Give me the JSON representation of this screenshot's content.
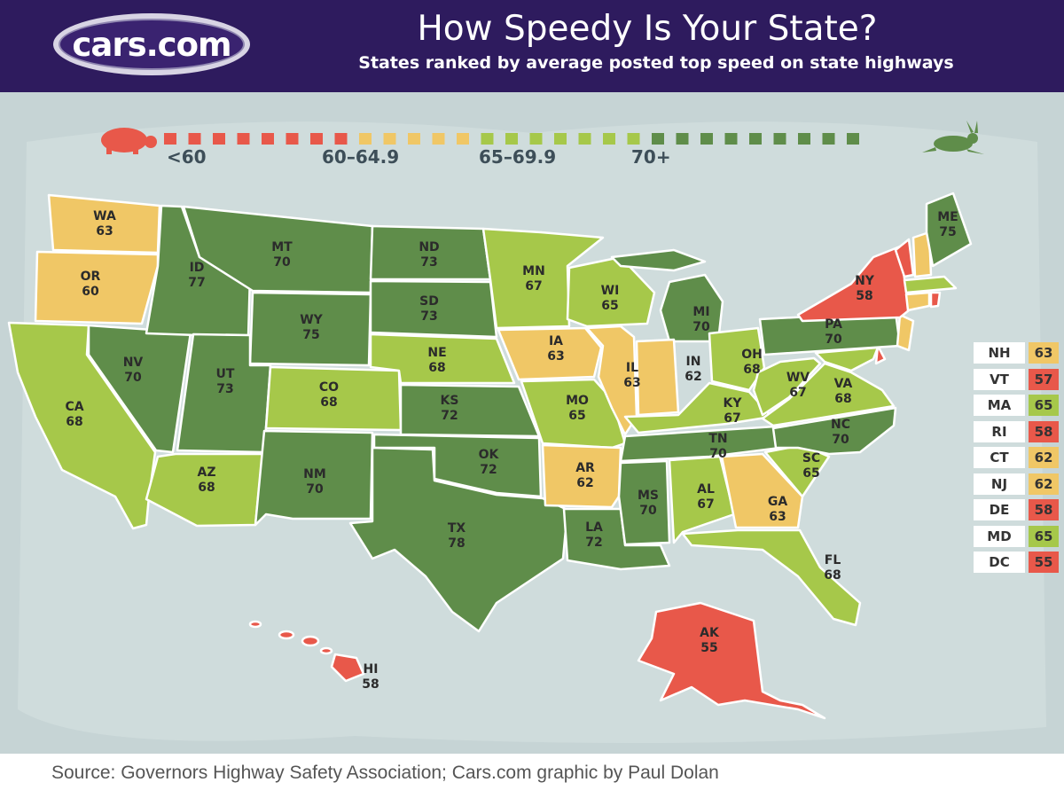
{
  "header": {
    "logo_text": "cars.com",
    "title": "How Speedy Is Your State?",
    "subtitle": "States ranked by average posted top speed on state highways"
  },
  "colors": {
    "below_60": "#e8584a",
    "60_64_9": "#f0c766",
    "65_69_9": "#a6c84a",
    "70_plus": "#5f8d4a",
    "header_bg": "#2e1b5e",
    "water": "#c6d4d5"
  },
  "legend": {
    "items": [
      {
        "label": "<60",
        "category": "below_60"
      },
      {
        "label": "60–64.9",
        "category": "60_64_9"
      },
      {
        "label": "65–69.9",
        "category": "65_69_9"
      },
      {
        "label": "70+",
        "category": "70_plus"
      }
    ],
    "slow_icon": "turtle-icon",
    "fast_icon": "rabbit-icon"
  },
  "states": [
    {
      "abbr": "WA",
      "speed": "63"
    },
    {
      "abbr": "OR",
      "speed": "60"
    },
    {
      "abbr": "CA",
      "speed": "68"
    },
    {
      "abbr": "NV",
      "speed": "70"
    },
    {
      "abbr": "ID",
      "speed": "77"
    },
    {
      "abbr": "MT",
      "speed": "70"
    },
    {
      "abbr": "WY",
      "speed": "75"
    },
    {
      "abbr": "UT",
      "speed": "73"
    },
    {
      "abbr": "AZ",
      "speed": "68"
    },
    {
      "abbr": "CO",
      "speed": "68"
    },
    {
      "abbr": "NM",
      "speed": "70"
    },
    {
      "abbr": "ND",
      "speed": "73"
    },
    {
      "abbr": "SD",
      "speed": "73"
    },
    {
      "abbr": "NE",
      "speed": "68"
    },
    {
      "abbr": "KS",
      "speed": "72"
    },
    {
      "abbr": "OK",
      "speed": "72"
    },
    {
      "abbr": "TX",
      "speed": "78"
    },
    {
      "abbr": "MN",
      "speed": "67"
    },
    {
      "abbr": "IA",
      "speed": "63"
    },
    {
      "abbr": "MO",
      "speed": "65"
    },
    {
      "abbr": "AR",
      "speed": "62"
    },
    {
      "abbr": "LA",
      "speed": "72"
    },
    {
      "abbr": "WI",
      "speed": "65"
    },
    {
      "abbr": "IL",
      "speed": "63"
    },
    {
      "abbr": "MS",
      "speed": "70"
    },
    {
      "abbr": "MI",
      "speed": "70"
    },
    {
      "abbr": "IN",
      "speed": "62"
    },
    {
      "abbr": "OH",
      "speed": "68"
    },
    {
      "abbr": "KY",
      "speed": "67"
    },
    {
      "abbr": "TN",
      "speed": "70"
    },
    {
      "abbr": "AL",
      "speed": "67"
    },
    {
      "abbr": "GA",
      "speed": "63"
    },
    {
      "abbr": "FL",
      "speed": "68"
    },
    {
      "abbr": "SC",
      "speed": "65"
    },
    {
      "abbr": "NC",
      "speed": "70"
    },
    {
      "abbr": "VA",
      "speed": "68"
    },
    {
      "abbr": "WV",
      "speed": "67"
    },
    {
      "abbr": "PA",
      "speed": "70"
    },
    {
      "abbr": "NY",
      "speed": "58"
    },
    {
      "abbr": "ME",
      "speed": "75"
    },
    {
      "abbr": "AK",
      "speed": "55"
    },
    {
      "abbr": "HI",
      "speed": "58"
    }
  ],
  "side_table": [
    {
      "abbr": "NH",
      "speed": "63",
      "category": "60_64_9"
    },
    {
      "abbr": "VT",
      "speed": "57",
      "category": "below_60"
    },
    {
      "abbr": "MA",
      "speed": "65",
      "category": "65_69_9"
    },
    {
      "abbr": "RI",
      "speed": "58",
      "category": "below_60"
    },
    {
      "abbr": "CT",
      "speed": "62",
      "category": "60_64_9"
    },
    {
      "abbr": "NJ",
      "speed": "62",
      "category": "60_64_9"
    },
    {
      "abbr": "DE",
      "speed": "58",
      "category": "below_60"
    },
    {
      "abbr": "MD",
      "speed": "65",
      "category": "65_69_9"
    },
    {
      "abbr": "DC",
      "speed": "55",
      "category": "below_60"
    }
  ],
  "source": "Source: Governors Highway Safety Association; Cars.com graphic by Paul Dolan"
}
